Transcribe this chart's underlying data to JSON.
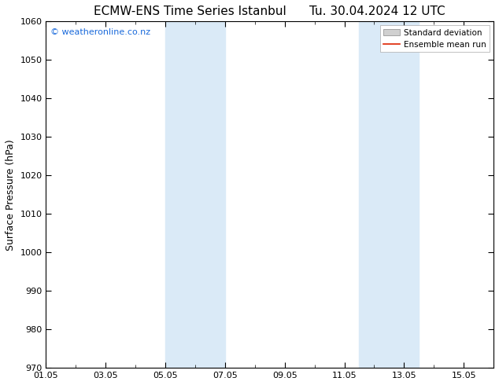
{
  "title": "ECMW-ENS Time Series Istanbul",
  "title2": "Tu. 30.04.2024 12 UTC",
  "ylabel": "Surface Pressure (hPa)",
  "ylim": [
    970,
    1060
  ],
  "yticks": [
    970,
    980,
    990,
    1000,
    1010,
    1020,
    1030,
    1040,
    1050,
    1060
  ],
  "xtick_labels": [
    "01.05",
    "03.05",
    "05.05",
    "07.05",
    "09.05",
    "11.05",
    "13.05",
    "15.05"
  ],
  "xtick_positions": [
    0,
    2,
    4,
    6,
    8,
    10,
    12,
    14
  ],
  "xlim": [
    0,
    15
  ],
  "shaded_bands": [
    {
      "x_start": 4.0,
      "x_end": 6.0
    },
    {
      "x_start": 10.5,
      "x_end": 12.5
    }
  ],
  "shade_color": "#daeaf7",
  "watermark_text": "© weatheronline.co.nz",
  "watermark_color": "#1a6adb",
  "legend_std_label": "Standard deviation",
  "legend_mean_label": "Ensemble mean run",
  "legend_std_facecolor": "#d0d0d0",
  "legend_std_edgecolor": "#888888",
  "legend_mean_color": "#dd2200",
  "background_color": "#ffffff",
  "spine_color": "#000000",
  "title_fontsize": 11,
  "axis_label_fontsize": 9,
  "tick_fontsize": 8,
  "watermark_fontsize": 8,
  "legend_fontsize": 7.5
}
